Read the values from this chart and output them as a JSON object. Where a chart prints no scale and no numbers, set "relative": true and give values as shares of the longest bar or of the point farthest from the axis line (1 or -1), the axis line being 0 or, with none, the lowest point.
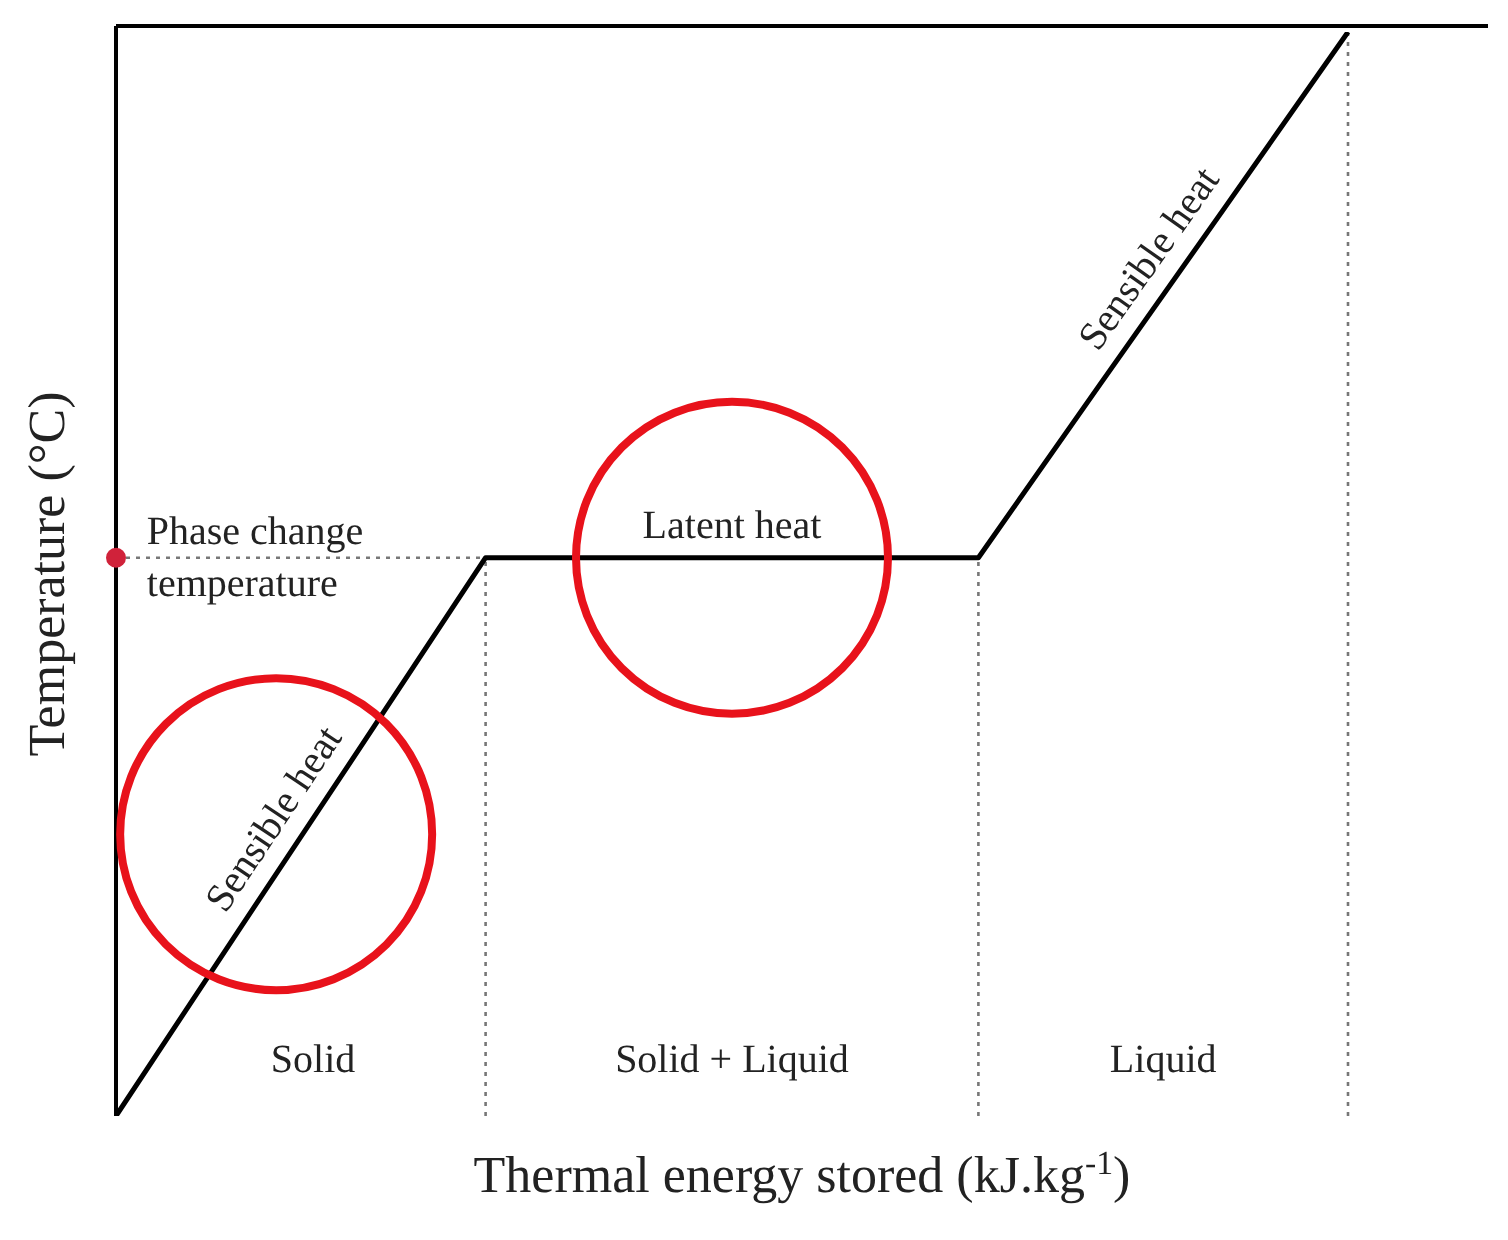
{
  "chart_data": {
    "type": "line",
    "relative": true,
    "xlabel": "Thermal energy stored (kJ.kg$^{-1}$)",
    "ylabel": "Temperature (°C)",
    "categories": [
      null,
      null,
      null,
      null,
      null,
      null,
      null,
      null,
      null,
      null,
      null
    ],
    "series": [
      {
        "color": "#000000",
        "values": [
          0,
          0.172,
          0.343,
          0.515,
          0.515,
          0.515,
          0.515,
          0.515,
          0.677,
          0.838,
          1
        ]
      }
    ],
    "marker": "none",
    "line_style": "solid",
    "ref_lines": [
      {
        "axis": "y",
        "value": 0.515,
        "color": "#777777",
        "line_style": "dotted"
      }
    ],
    "annotations": [
      "Phase change temperature",
      "Sensible heat",
      "Latent heat",
      "Sensible heat",
      "Solid",
      "Solid + Liquid",
      "Liquid"
    ]
  }
}
